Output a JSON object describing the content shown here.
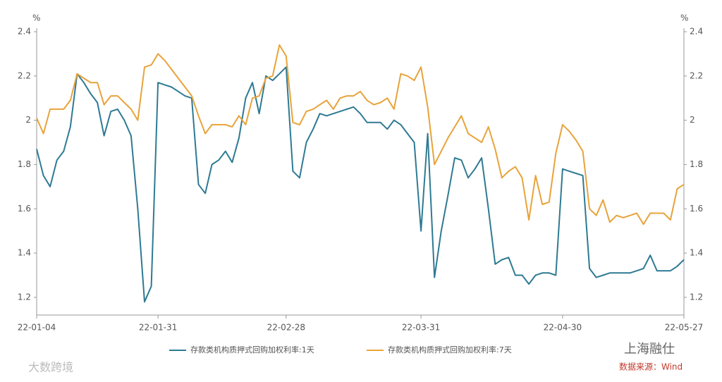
{
  "chart_data": {
    "type": "line",
    "y_unit": "%",
    "y2_unit": "%",
    "categories": [
      "22-01-04",
      null,
      null,
      null,
      null,
      null,
      null,
      null,
      null,
      null,
      null,
      null,
      null,
      null,
      null,
      null,
      null,
      null,
      "22-01-31",
      null,
      null,
      null,
      null,
      null,
      null,
      null,
      null,
      null,
      null,
      null,
      null,
      null,
      null,
      null,
      null,
      null,
      null,
      "22-02-28",
      null,
      null,
      null,
      null,
      null,
      null,
      null,
      null,
      null,
      null,
      null,
      null,
      null,
      null,
      null,
      null,
      null,
      null,
      null,
      "22-03-31",
      null,
      null,
      null,
      null,
      null,
      null,
      null,
      null,
      null,
      null,
      null,
      null,
      null,
      null,
      null,
      null,
      null,
      null,
      null,
      null,
      "22-04-30",
      null,
      null,
      null,
      null,
      null,
      null,
      null,
      null,
      null,
      null,
      null,
      null,
      null,
      null,
      null,
      null,
      null,
      "22-05-27"
    ],
    "series": [
      {
        "name": "存款类机构质押式回购加权利率:1天",
        "color": "#2e7a93",
        "values": [
          1.87,
          1.75,
          1.7,
          1.82,
          1.86,
          1.97,
          2.21,
          2.17,
          2.12,
          2.08,
          1.93,
          2.04,
          2.05,
          2.0,
          1.93,
          1.6,
          1.18,
          1.25,
          2.17,
          2.16,
          2.15,
          2.13,
          2.11,
          2.1,
          1.71,
          1.67,
          1.8,
          1.82,
          1.86,
          1.81,
          1.92,
          2.1,
          2.17,
          2.03,
          2.2,
          2.18,
          2.21,
          2.24,
          1.77,
          1.74,
          1.9,
          1.96,
          2.03,
          2.02,
          2.03,
          2.04,
          2.05,
          2.06,
          2.03,
          1.99,
          1.99,
          1.99,
          1.96,
          2.0,
          1.98,
          1.94,
          1.9,
          1.5,
          1.94,
          1.29,
          1.5,
          1.66,
          1.83,
          1.82,
          1.74,
          1.78,
          1.83,
          1.6,
          1.35,
          1.37,
          1.38,
          1.3,
          1.3,
          1.26,
          1.3,
          1.31,
          1.31,
          1.3,
          1.78,
          1.77,
          1.76,
          1.75,
          1.33,
          1.29,
          1.3,
          1.31,
          1.31,
          1.31,
          1.31,
          1.32,
          1.33,
          1.39,
          1.32,
          1.32,
          1.32,
          1.34,
          1.37
        ]
      },
      {
        "name": "存款类机构质押式回购加权利率:7天",
        "color": "#e8a33a",
        "values": [
          2.01,
          1.94,
          2.05,
          2.05,
          2.05,
          2.09,
          2.21,
          2.19,
          2.17,
          2.17,
          2.07,
          2.11,
          2.11,
          2.08,
          2.05,
          2.0,
          2.24,
          2.25,
          2.3,
          2.27,
          2.23,
          2.19,
          2.15,
          2.11,
          2.02,
          1.94,
          1.98,
          1.98,
          1.98,
          1.97,
          2.02,
          1.98,
          2.1,
          2.11,
          2.19,
          2.2,
          2.34,
          2.29,
          1.99,
          1.98,
          2.04,
          2.05,
          2.07,
          2.09,
          2.05,
          2.1,
          2.11,
          2.11,
          2.13,
          2.09,
          2.07,
          2.08,
          2.1,
          2.05,
          2.21,
          2.2,
          2.18,
          2.24,
          2.06,
          1.8,
          1.86,
          1.92,
          1.97,
          2.02,
          1.94,
          1.92,
          1.9,
          1.97,
          1.87,
          1.74,
          1.77,
          1.79,
          1.74,
          1.55,
          1.75,
          1.62,
          1.63,
          1.85,
          1.98,
          1.95,
          1.91,
          1.86,
          1.6,
          1.57,
          1.64,
          1.54,
          1.57,
          1.56,
          1.57,
          1.58,
          1.53,
          1.58,
          1.58,
          1.58,
          1.55,
          1.69,
          1.71
        ]
      }
    ],
    "ylim": [
      1.12,
      2.4
    ],
    "yticks": [
      1.2,
      1.4,
      1.6,
      1.8,
      2,
      2.2,
      2.4
    ],
    "y2lim": [
      1.12,
      2.4
    ],
    "y2ticks": [
      1.2,
      1.4,
      1.6,
      1.8,
      2,
      2.2,
      2.4
    ],
    "legend": "bottom",
    "annotations": [
      "大数跨境",
      "上海融仕",
      "数据来源：Wind"
    ]
  }
}
